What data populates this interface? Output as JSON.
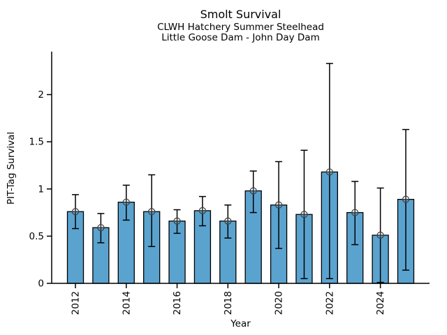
{
  "header": {
    "title": "Smolt Survival",
    "subtitle1": "CLWH Hatchery Summer Steelhead",
    "subtitle2": "Little Goose Dam - John Day Dam"
  },
  "chart_data": {
    "type": "bar",
    "title": "Smolt Survival",
    "subtitle": [
      "CLWH Hatchery Summer Steelhead",
      "Little Goose Dam - John Day Dam"
    ],
    "xlabel": "Year",
    "ylabel": "PIT-Tag Survival",
    "categories": [
      2012,
      2013,
      2014,
      2015,
      2016,
      2017,
      2018,
      2019,
      2020,
      2021,
      2022,
      2023,
      2024,
      2025
    ],
    "values": [
      0.76,
      0.59,
      0.86,
      0.76,
      0.66,
      0.77,
      0.66,
      0.98,
      0.83,
      0.73,
      1.18,
      0.75,
      0.51,
      0.89
    ],
    "error_low": [
      0.58,
      0.43,
      0.67,
      0.39,
      0.53,
      0.61,
      0.48,
      0.75,
      0.37,
      0.05,
      0.05,
      0.41,
      0.01,
      0.14
    ],
    "error_high": [
      0.94,
      0.74,
      1.04,
      1.15,
      0.78,
      0.92,
      0.83,
      1.19,
      1.29,
      1.41,
      2.33,
      1.08,
      1.01,
      1.63
    ],
    "yticks": [
      0,
      0.5,
      1,
      1.5,
      2
    ],
    "ytick_labels": [
      "0",
      "0.5",
      "1",
      "1.5",
      "2"
    ],
    "xticks": [
      2012,
      2014,
      2016,
      2018,
      2020,
      2022,
      2024
    ],
    "ylim": [
      0,
      2.455
    ],
    "grid": false,
    "legend": "none",
    "marker": "circle-cross",
    "colors": {
      "bar_fill": "#5ba3cf",
      "bar_edge": "#000000",
      "error_line": "#000000",
      "marker_edge": "#3c3c3c",
      "axis": "#000000",
      "text": "#000000"
    }
  }
}
